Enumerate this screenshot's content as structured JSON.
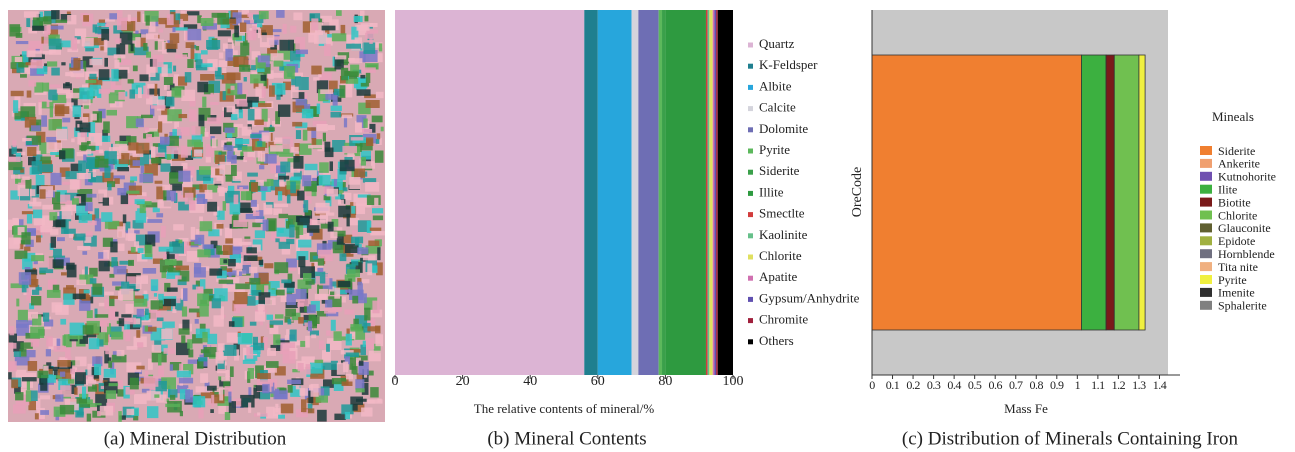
{
  "image_panel": {
    "caption": "(a) Mineral Distribution"
  },
  "chart_data": [
    {
      "type": "bar",
      "orientation": "horizontal",
      "stacked": true,
      "caption": "(b) Mineral Contents",
      "x_label": "The relative contents of mineral/%",
      "categories": [
        null
      ],
      "xlim": [
        0,
        100
      ],
      "xticks": [
        0,
        20,
        40,
        60,
        80,
        100
      ],
      "series": [
        {
          "name": "Quartz",
          "color": "#dcb4d4",
          "values": [
            56
          ]
        },
        {
          "name": "K-Feldsper",
          "color": "#1f7f8f",
          "values": [
            4
          ]
        },
        {
          "name": "Albite",
          "color": "#27a6dc",
          "values": [
            10
          ]
        },
        {
          "name": "Calcite",
          "color": "#d4d4dc",
          "values": [
            2
          ]
        },
        {
          "name": "Dolomite",
          "color": "#6e6eb4",
          "values": [
            6
          ]
        },
        {
          "name": "Pyrite",
          "color": "#5cb85c",
          "values": [
            1
          ]
        },
        {
          "name": "Siderite",
          "color": "#3aa04a",
          "values": [
            1
          ]
        },
        {
          "name": "Illite",
          "color": "#2e9a40",
          "values": [
            12
          ]
        },
        {
          "name": "Smectlte",
          "color": "#d23c3c",
          "values": [
            0.5
          ]
        },
        {
          "name": "Kaolinite",
          "color": "#66c08a",
          "values": [
            0.5
          ]
        },
        {
          "name": "Chlorite",
          "color": "#e0e060",
          "values": [
            1
          ]
        },
        {
          "name": "Apatite",
          "color": "#d070b0",
          "values": [
            0.5
          ]
        },
        {
          "name": "Gypsum/Anhydrite",
          "color": "#6050b0",
          "values": [
            0.5
          ]
        },
        {
          "name": "Chromite",
          "color": "#a0203c",
          "values": [
            0.5
          ]
        },
        {
          "name": "Others",
          "color": "#000000",
          "values": [
            4.5
          ]
        }
      ]
    },
    {
      "type": "bar",
      "orientation": "horizontal",
      "stacked": true,
      "caption": "(c) Distribution of Minerals Containing Iron",
      "x_label": "Mass Fe",
      "y_label": "OreCode",
      "legend_title": "Mineals",
      "categories": [
        null
      ],
      "xlim": [
        0,
        1.5
      ],
      "xticks": [
        0,
        0.1,
        0.2,
        0.3,
        0.4,
        0.5,
        0.6,
        0.7,
        0.8,
        0.9,
        1,
        1.1,
        1.2,
        1.3,
        1.4
      ],
      "series": [
        {
          "name": "Siderite",
          "color": "#f07f30",
          "values": [
            1.02
          ]
        },
        {
          "name": "Ankerite",
          "color": "#f0a070",
          "values": [
            0
          ]
        },
        {
          "name": "Kutnohorite",
          "color": "#7050b0",
          "values": [
            0
          ]
        },
        {
          "name": "Ilite",
          "color": "#3cb040",
          "values": [
            0.12
          ]
        },
        {
          "name": "Biotite",
          "color": "#7a1a1a",
          "values": [
            0.04
          ]
        },
        {
          "name": "Chlorite",
          "color": "#70c050",
          "values": [
            0.12
          ]
        },
        {
          "name": "Glauconite",
          "color": "#606030",
          "values": [
            0
          ]
        },
        {
          "name": "Epidote",
          "color": "#a0b040",
          "values": [
            0
          ]
        },
        {
          "name": "Hornblende",
          "color": "#707080",
          "values": [
            0
          ]
        },
        {
          "name": "Tita nite",
          "color": "#f0b080",
          "values": [
            0
          ]
        },
        {
          "name": "Pyrite",
          "color": "#f0f040",
          "values": [
            0.03
          ]
        },
        {
          "name": "Imenite",
          "color": "#303030",
          "values": [
            0
          ]
        },
        {
          "name": "Sphalerite",
          "color": "#808080",
          "values": [
            0
          ]
        }
      ]
    }
  ]
}
